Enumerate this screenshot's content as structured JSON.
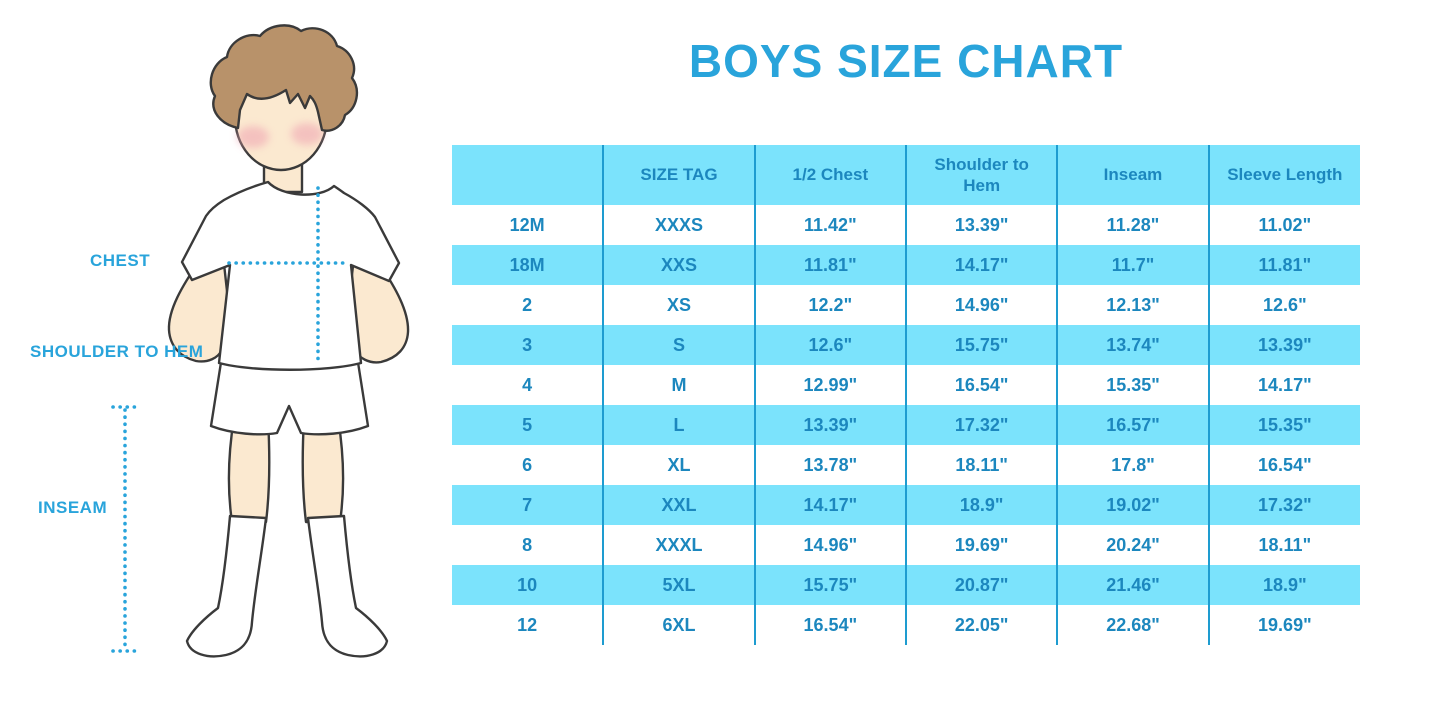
{
  "title": "BOYS SIZE CHART",
  "figure": {
    "chest_label": "CHEST",
    "shoulder_to_hem_label": "SHOULDER TO HEM",
    "inseam_label": "INSEAM"
  },
  "colors": {
    "title_blue": "#29A4DB",
    "label_blue": "#29A4DB",
    "table_text": "#1C87BE",
    "band_cyan": "#7BE3FC",
    "divider_blue": "#1E9CD0",
    "skin": "#FBE9D0",
    "hair": "#B8926A",
    "cheek": "#F0A8B4",
    "outline": "#3A3A3A"
  },
  "chart_data": {
    "type": "table",
    "title": "BOYS SIZE CHART",
    "columns": [
      "",
      "SIZE TAG",
      "1/2 Chest",
      "Shoulder to Hem",
      "Inseam",
      "Sleeve Length"
    ],
    "rows": [
      [
        "12M",
        "XXXS",
        "11.42\"",
        "13.39\"",
        "11.28\"",
        "11.02\""
      ],
      [
        "18M",
        "XXS",
        "11.81\"",
        "14.17\"",
        "11.7\"",
        "11.81\""
      ],
      [
        "2",
        "XS",
        "12.2\"",
        "14.96\"",
        "12.13\"",
        "12.6\""
      ],
      [
        "3",
        "S",
        "12.6\"",
        "15.75\"",
        "13.74\"",
        "13.39\""
      ],
      [
        "4",
        "M",
        "12.99\"",
        "16.54\"",
        "15.35\"",
        "14.17\""
      ],
      [
        "5",
        "L",
        "13.39\"",
        "17.32\"",
        "16.57\"",
        "15.35\""
      ],
      [
        "6",
        "XL",
        "13.78\"",
        "18.11\"",
        "17.8\"",
        "16.54\""
      ],
      [
        "7",
        "XXL",
        "14.17\"",
        "18.9\"",
        "19.02\"",
        "17.32\""
      ],
      [
        "8",
        "XXXL",
        "14.96\"",
        "19.69\"",
        "20.24\"",
        "18.11\""
      ],
      [
        "10",
        "5XL",
        "15.75\"",
        "20.87\"",
        "21.46\"",
        "18.9\""
      ],
      [
        "12",
        "6XL",
        "16.54\"",
        "22.05\"",
        "22.68\"",
        "19.69\""
      ]
    ]
  }
}
